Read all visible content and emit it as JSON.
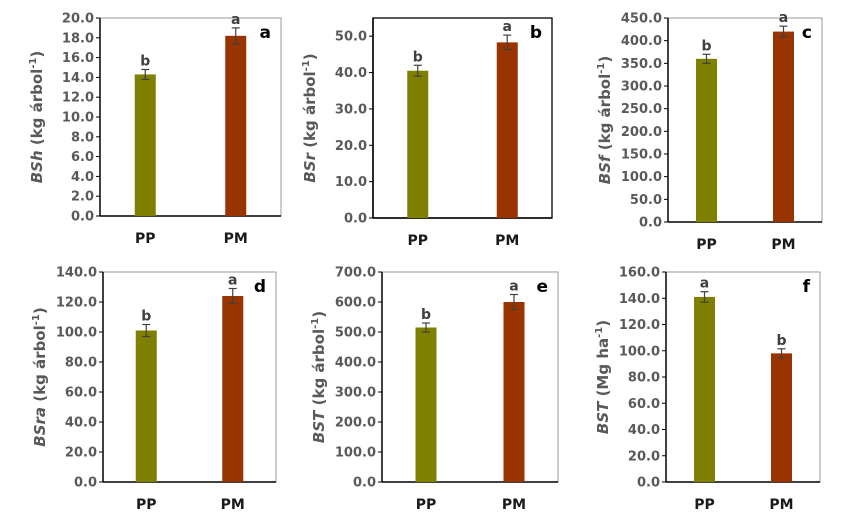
{
  "colors": {
    "PP": "#7f7f00",
    "PM": "#993300",
    "axis": "#000000",
    "text": "#595959",
    "errorbar": "#404040"
  },
  "chart_data": [
    {
      "type": "bar",
      "panel": "a",
      "categories": [
        "PP",
        "PM"
      ],
      "values": [
        14.3,
        18.2
      ],
      "errors": [
        0.5,
        0.8
      ],
      "letters": [
        "b",
        "a"
      ],
      "ylabel_var": "BSh",
      "ylabel_unit": " (kg árbol",
      "ylabel_sup": "-1",
      "ylabel_close": ")",
      "ylim": [
        0,
        20
      ],
      "yticks": [
        0,
        2,
        4,
        6,
        8,
        10,
        12,
        14,
        16,
        18,
        20
      ],
      "yticklabels": [
        "0.0",
        "2.0",
        "4.0",
        "6.0",
        "8.0",
        "10.0",
        "12.0",
        "14.0",
        "16.0",
        "18.0",
        "20.0"
      ],
      "frame": "axes"
    },
    {
      "type": "bar",
      "panel": "b",
      "categories": [
        "PP",
        "PM"
      ],
      "values": [
        40.5,
        48.3
      ],
      "errors": [
        1.5,
        2.0
      ],
      "letters": [
        "b",
        "a"
      ],
      "ylabel_var": "BSr",
      "ylabel_unit": " (kg árbol",
      "ylabel_sup": "-1",
      "ylabel_close": ")",
      "ylim": [
        0,
        55
      ],
      "yticks": [
        0,
        10,
        20,
        30,
        40,
        50
      ],
      "yticklabels": [
        "0.0",
        "10.0",
        "20.0",
        "30.0",
        "40.0",
        "50.0"
      ],
      "frame": "box"
    },
    {
      "type": "bar",
      "panel": "c",
      "categories": [
        "PP",
        "PM"
      ],
      "values": [
        360,
        420
      ],
      "errors": [
        10,
        12
      ],
      "letters": [
        "b",
        "a"
      ],
      "ylabel_var": "BSf",
      "ylabel_unit": " (kg árbol",
      "ylabel_sup": "-1",
      "ylabel_close": ")",
      "ylim": [
        0,
        450
      ],
      "yticks": [
        0,
        50,
        100,
        150,
        200,
        250,
        300,
        350,
        400,
        450
      ],
      "yticklabels": [
        "0.0",
        "50.0",
        "100.0",
        "150.0",
        "200.0",
        "250.0",
        "300.0",
        "350.0",
        "400.0",
        "450.0"
      ],
      "frame": "axes"
    },
    {
      "type": "bar",
      "panel": "d",
      "categories": [
        "PP",
        "PM"
      ],
      "values": [
        101,
        124
      ],
      "errors": [
        4,
        5
      ],
      "letters": [
        "b",
        "a"
      ],
      "ylabel_var": "BSra",
      "ylabel_unit": " (kg árbol",
      "ylabel_sup": "-1",
      "ylabel_close": ")",
      "ylim": [
        0,
        140
      ],
      "yticks": [
        0,
        20,
        40,
        60,
        80,
        100,
        120,
        140
      ],
      "yticklabels": [
        "0.0",
        "20.0",
        "40.0",
        "60.0",
        "80.0",
        "100.0",
        "120.0",
        "140.0"
      ],
      "frame": "axes"
    },
    {
      "type": "bar",
      "panel": "e",
      "categories": [
        "PP",
        "PM"
      ],
      "values": [
        515,
        600
      ],
      "errors": [
        15,
        25
      ],
      "letters": [
        "b",
        "a"
      ],
      "ylabel_var": "BST",
      "ylabel_unit": " (kg árbol",
      "ylabel_sup": "-1",
      "ylabel_close": ")",
      "ylim": [
        0,
        700
      ],
      "yticks": [
        0,
        100,
        200,
        300,
        400,
        500,
        600,
        700
      ],
      "yticklabels": [
        "0.0",
        "100.0",
        "200.0",
        "300.0",
        "400.0",
        "500.0",
        "600.0",
        "700.0"
      ],
      "frame": "axes"
    },
    {
      "type": "bar",
      "panel": "f",
      "categories": [
        "PP",
        "PM"
      ],
      "values": [
        141,
        98
      ],
      "errors": [
        4,
        3.5
      ],
      "letters": [
        "a",
        "b"
      ],
      "ylabel_var": "BST",
      "ylabel_unit": " (Mg ha",
      "ylabel_sup": "-1",
      "ylabel_close": ")",
      "ylim": [
        0,
        160
      ],
      "yticks": [
        0,
        20,
        40,
        60,
        80,
        100,
        120,
        140,
        160
      ],
      "yticklabels": [
        "0.0",
        "20.0",
        "40.0",
        "60.0",
        "80.0",
        "100.0",
        "120.0",
        "140.0",
        "160.0"
      ],
      "frame": "axes"
    }
  ]
}
